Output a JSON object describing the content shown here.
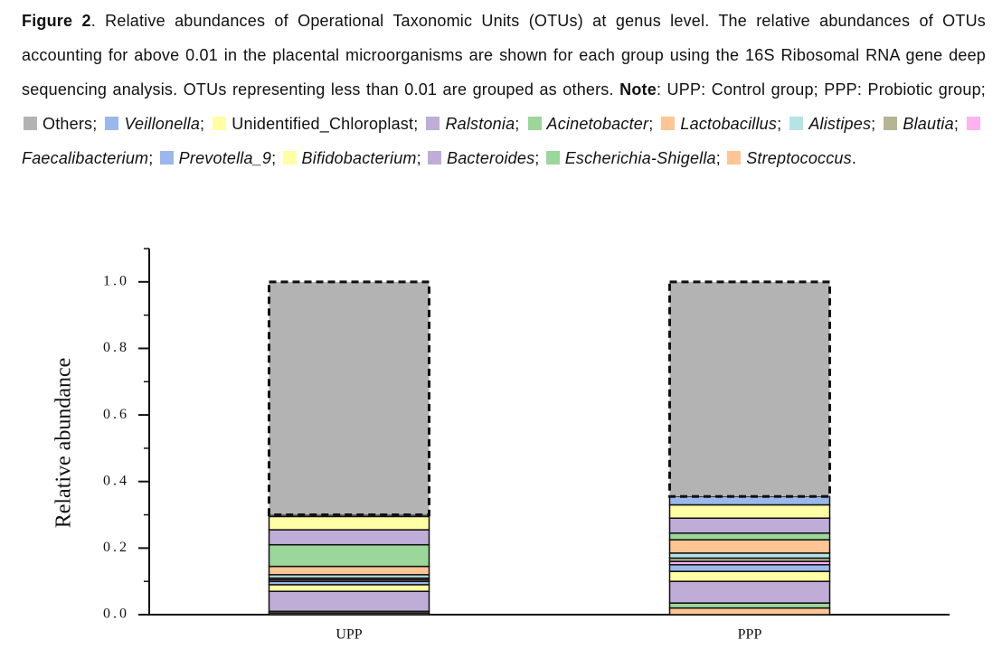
{
  "caption": {
    "parts": [
      {
        "text": "Figure 2",
        "bold": true
      },
      {
        "text": ". Relative abundances of Operational Taxonomic Units (OTUs) at genus level. The relative abundances of OTUs accounting for above 0.01 in the placental microorganisms are shown for each group using the 16S Ribosomal RNA gene deep sequencing analysis. OTUs representing less than 0.01 are grouped as others. "
      },
      {
        "text": "Note",
        "bold": true
      },
      {
        "text": ": UPP: Control group; PPP: Probiotic group; "
      }
    ],
    "separator": "; ",
    "end": "."
  },
  "chart_data": {
    "type": "stacked_bar",
    "ylabel": "Relative abundance",
    "categories": [
      "UPP",
      "PPP"
    ],
    "ylim": [
      0,
      1.1
    ],
    "yticks": [
      {
        "value": 0,
        "label": "0.0"
      },
      {
        "value": 0.2,
        "label": "0.2"
      },
      {
        "value": 0.4,
        "label": "0.4"
      },
      {
        "value": 0.6,
        "label": "0.6"
      },
      {
        "value": 0.8,
        "label": "0.8"
      },
      {
        "value": 1,
        "label": "1.0"
      }
    ],
    "minor_yticks": [
      0.1,
      0.3,
      0.5,
      0.7,
      0.9,
      1.1
    ],
    "series": [
      {
        "name": "Others",
        "color": "#b3b3b3",
        "italic": false,
        "dashed": true,
        "values": [
          0.7,
          0.645
        ]
      },
      {
        "name": "Veillonella",
        "color": "#9bb8ec",
        "italic": true,
        "values": [
          0.005,
          0.025
        ]
      },
      {
        "name": "Unidentified_Chloroplast",
        "color": "#ffffa6",
        "italic": false,
        "values": [
          0.04,
          0.04
        ]
      },
      {
        "name": "Ralstonia",
        "color": "#bfadd8",
        "italic": true,
        "values": [
          0.045,
          0.045
        ]
      },
      {
        "name": "Acinetobacter",
        "color": "#9bd69b",
        "italic": true,
        "values": [
          0.065,
          0.02
        ]
      },
      {
        "name": "Lactobacillus",
        "color": "#ffc594",
        "italic": true,
        "values": [
          0.025,
          0.04
        ]
      },
      {
        "name": "Alistipes",
        "color": "#b5e4e4",
        "italic": true,
        "values": [
          0.01,
          0.015
        ]
      },
      {
        "name": "Blautia",
        "color": "#b5b593",
        "italic": true,
        "values": [
          0.005,
          0.01
        ]
      },
      {
        "name": "Faecalibacterium",
        "color": "#ffb3f0",
        "italic": true,
        "values": [
          0.005,
          0.01
        ]
      },
      {
        "name": "Prevotella_9",
        "color": "#9bb8ec",
        "italic": true,
        "values": [
          0.01,
          0.02
        ]
      },
      {
        "name": "Bifidobacterium",
        "color": "#ffffa6",
        "italic": true,
        "values": [
          0.02,
          0.03
        ]
      },
      {
        "name": "Bacteroides",
        "color": "#bfadd8",
        "italic": true,
        "values": [
          0.06,
          0.065
        ]
      },
      {
        "name": "Escherichia-Shigella",
        "color": "#9bd69b",
        "italic": true,
        "values": [
          0.005,
          0.015
        ]
      },
      {
        "name": "Streptococcus",
        "color": "#ffc594",
        "italic": true,
        "values": [
          0.005,
          0.02
        ]
      }
    ]
  }
}
